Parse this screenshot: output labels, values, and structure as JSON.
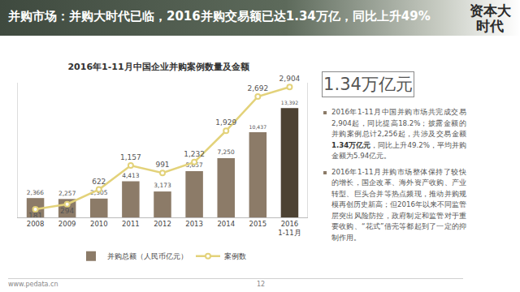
{
  "slide": {
    "title": "并购市场：并购大时代已临，2016并购交易额已达1.34万亿，同比上升49%",
    "logo": "资本大时代",
    "highlight": "1.34万亿元",
    "bullets": [
      [
        {
          "text": "2016年1-11月中国并购市场共完成交易2,904起，同比提高18.2%；披露金额的并购案例总计2,256起，共涉及交易金额",
          "bold": false
        },
        {
          "text": "1.34万亿元",
          "bold": true
        },
        {
          "text": "，同比上升49.2%，平均并购金额为5.94亿元。",
          "bold": false
        }
      ],
      [
        {
          "text": "2016年1-11月并购市场整体保持了较快的增长，国企改革、海外资产收购、产业转型、巨头合并等热点频现，推动并购规模再创历史新高；但2016年以来不同监管层突出风险防控，政府制定和监管对于重要收购、“花式”借壳等都起到了一定的抑制作用。",
          "bold": false
        }
      ]
    ],
    "footer": {
      "site": "www.pedata.cn",
      "page": "12"
    }
  },
  "chart_data": {
    "type": "bar",
    "title": "2016年1-11月中国企业并购案例数量及金额",
    "categories": [
      "2008",
      "2009",
      "2010",
      "2011",
      "2012",
      "2013",
      "2014",
      "2015",
      "2016 1-11月"
    ],
    "series": [
      {
        "name": "并购总额（人民币亿元）",
        "type": "bar",
        "colors": [
          "#8c7b68",
          "#8c7b68",
          "#8c7b68",
          "#8c7b68",
          "#8c7b68",
          "#8c7b68",
          "#8c7b68",
          "#8c7b68",
          "#4d4233"
        ],
        "values": [
          2366,
          2257,
          2305,
          4413,
          3173,
          5657,
          7250,
          10437,
          13392
        ],
        "value_labels": [
          "2,366",
          "2,257",
          "2,305",
          "4,413",
          "3,173",
          "5,657",
          "7,250",
          "10,437",
          "13,392"
        ]
      },
      {
        "name": "案例数",
        "type": "line",
        "axis": "y2",
        "color": "#e3d27a",
        "marker": "circle",
        "values": [
          181,
          294,
          622,
          1157,
          991,
          1232,
          1929,
          2692,
          2904
        ],
        "value_labels": [
          "181",
          "294",
          "622",
          "1,157",
          "991",
          "1,232",
          "1,929",
          "2,692",
          "2,904"
        ]
      }
    ],
    "ylim": [
      0,
      16500
    ],
    "y2lim": [
      0,
      3000
    ],
    "grid": false,
    "legend": "bottom",
    "data_labels": true,
    "tick_labels": "x"
  }
}
